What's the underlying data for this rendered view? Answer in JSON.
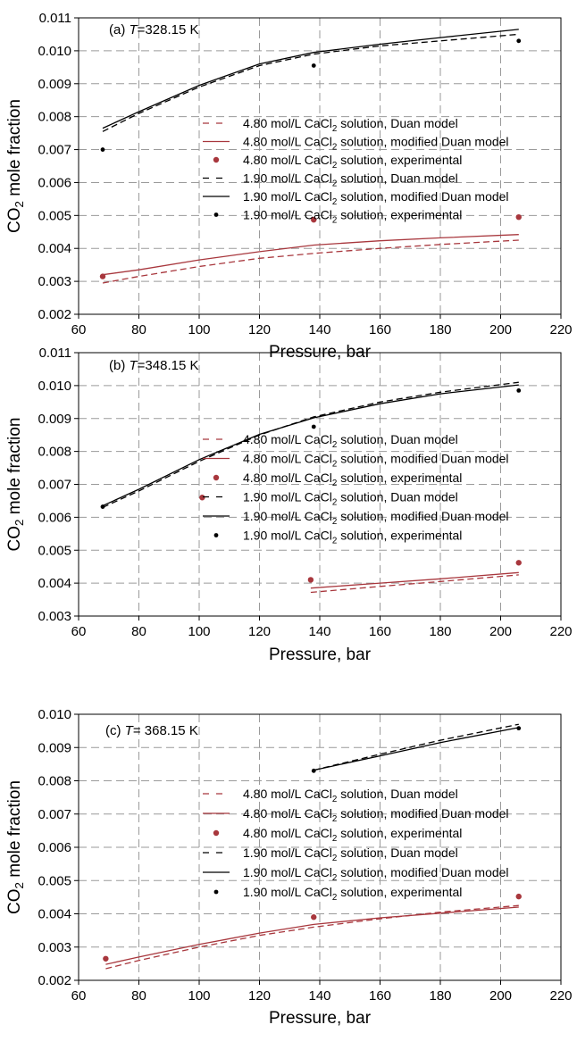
{
  "colors": {
    "cacl2_480": "#a8373d",
    "cacl2_190": "#000000",
    "grid": "#9a9a9a"
  },
  "chart_data": [
    {
      "type": "line",
      "panel_label": "(a)",
      "temperature_symbol": "T",
      "temperature_value": "=328.15 K",
      "xlabel": "Pressure, bar",
      "ylabel": "CO₂ mole fraction",
      "xlim": [
        60,
        220
      ],
      "ylim": [
        0.002,
        0.011
      ],
      "xticks": [
        60,
        80,
        100,
        120,
        140,
        160,
        180,
        200,
        220
      ],
      "yticks": [
        0.002,
        0.003,
        0.004,
        0.005,
        0.006,
        0.007,
        0.008,
        0.009,
        0.01,
        0.011
      ],
      "ytick_decimals": 3,
      "grid": true,
      "legend_position": "middle-right",
      "series": [
        {
          "name": "4.80 mol/L CaCl₂ solution, Duan model",
          "kind": "line",
          "dash": "dashed",
          "color": "#a8373d",
          "x": [
            68,
            80,
            100,
            120,
            138,
            160,
            180,
            206
          ],
          "y": [
            0.00295,
            0.00315,
            0.00345,
            0.0037,
            0.00385,
            0.004,
            0.00412,
            0.00425
          ]
        },
        {
          "name": "4.80 mol/L CaCl₂ solution, modified Duan model",
          "kind": "line",
          "dash": "solid",
          "color": "#a8373d",
          "x": [
            68,
            80,
            100,
            120,
            138,
            160,
            180,
            206
          ],
          "y": [
            0.0032,
            0.00335,
            0.00365,
            0.0039,
            0.0041,
            0.00423,
            0.00432,
            0.00442
          ]
        },
        {
          "name": "4.80 mol/L CaCl₂ solution, experimental",
          "kind": "scatter",
          "color": "#a8373d",
          "x": [
            68,
            138,
            206
          ],
          "y": [
            0.00315,
            0.00487,
            0.00495
          ]
        },
        {
          "name": "1.90 mol/L CaCl₂ solution, Duan model",
          "kind": "line",
          "dash": "dashed",
          "color": "#000000",
          "x": [
            68,
            80,
            100,
            120,
            138,
            160,
            180,
            206
          ],
          "y": [
            0.00755,
            0.0081,
            0.0089,
            0.00955,
            0.0099,
            0.01015,
            0.0103,
            0.0105
          ]
        },
        {
          "name": "1.90 mol/L CaCl₂ solution, modified Duan model",
          "kind": "line",
          "dash": "solid",
          "color": "#000000",
          "x": [
            68,
            80,
            100,
            120,
            138,
            160,
            180,
            206
          ],
          "y": [
            0.00765,
            0.00815,
            0.00895,
            0.0096,
            0.00995,
            0.0102,
            0.0104,
            0.01065
          ]
        },
        {
          "name": "1.90 mol/L CaCl₂ solution, experimental",
          "kind": "scatter",
          "color": "#000000",
          "x": [
            68,
            138,
            206
          ],
          "y": [
            0.007,
            0.00955,
            0.0103
          ]
        }
      ]
    },
    {
      "type": "line",
      "panel_label": "(b)",
      "temperature_symbol": "T",
      "temperature_value": "=348.15 K",
      "xlabel": "Pressure, bar",
      "ylabel": "CO₂ mole fraction",
      "xlim": [
        60,
        220
      ],
      "ylim": [
        0.003,
        0.011
      ],
      "xticks": [
        60,
        80,
        100,
        120,
        140,
        160,
        180,
        200,
        220
      ],
      "yticks": [
        0.003,
        0.004,
        0.005,
        0.006,
        0.007,
        0.008,
        0.009,
        0.01,
        0.011
      ],
      "ytick_decimals": 3,
      "grid": true,
      "legend_position": "middle-right",
      "series": [
        {
          "name": "4.80 mol/L CaCl₂ solution, Duan model",
          "kind": "line",
          "dash": "dashed",
          "color": "#a8373d",
          "x": [
            137,
            160,
            180,
            206
          ],
          "y": [
            0.00372,
            0.0039,
            0.00405,
            0.00425
          ]
        },
        {
          "name": "4.80 mol/L CaCl₂ solution, modified Duan model",
          "kind": "line",
          "dash": "solid",
          "color": "#a8373d",
          "x": [
            137,
            160,
            180,
            206
          ],
          "y": [
            0.00385,
            0.004,
            0.00413,
            0.00432
          ]
        },
        {
          "name": "4.80 mol/L CaCl₂ solution, experimental",
          "kind": "scatter",
          "color": "#a8373d",
          "x": [
            101,
            137,
            206
          ],
          "y": [
            0.0066,
            0.0041,
            0.00462
          ]
        },
        {
          "name": "1.90 mol/L CaCl₂ solution, Duan model",
          "kind": "line",
          "dash": "dashed",
          "color": "#000000",
          "x": [
            68,
            80,
            100,
            120,
            138,
            160,
            180,
            206
          ],
          "y": [
            0.0063,
            0.0068,
            0.0077,
            0.0085,
            0.00905,
            0.0095,
            0.0098,
            0.0101
          ]
        },
        {
          "name": "1.90 mol/L CaCl₂ solution, modified Duan model",
          "kind": "line",
          "dash": "solid",
          "color": "#000000",
          "x": [
            68,
            80,
            100,
            120,
            138,
            160,
            180,
            206
          ],
          "y": [
            0.00635,
            0.00685,
            0.00775,
            0.00852,
            0.00902,
            0.00945,
            0.00975,
            0.01002
          ]
        },
        {
          "name": "1.90 mol/L CaCl₂ solution, experimental",
          "kind": "scatter",
          "color": "#000000",
          "x": [
            68,
            138,
            206
          ],
          "y": [
            0.00632,
            0.00875,
            0.00985
          ]
        }
      ]
    },
    {
      "type": "line",
      "panel_label": "(c)",
      "temperature_symbol": "T",
      "temperature_value": "= 368.15 K",
      "xlabel": "Pressure, bar",
      "ylabel": "CO₂ mole fraction",
      "xlim": [
        60,
        220
      ],
      "ylim": [
        0.002,
        0.01
      ],
      "xticks": [
        60,
        80,
        100,
        120,
        140,
        160,
        180,
        200,
        220
      ],
      "yticks": [
        0.002,
        0.003,
        0.004,
        0.005,
        0.006,
        0.007,
        0.008,
        0.009,
        0.01
      ],
      "ytick_decimals": 3,
      "grid": true,
      "legend_position": "middle-right",
      "series": [
        {
          "name": "4.80 mol/L CaCl₂ solution, Duan model",
          "kind": "line",
          "dash": "dashed",
          "color": "#a8373d",
          "x": [
            69,
            80,
            100,
            120,
            138,
            160,
            180,
            206
          ],
          "y": [
            0.00235,
            0.0026,
            0.003,
            0.00335,
            0.0036,
            0.00385,
            0.00405,
            0.00425
          ]
        },
        {
          "name": "4.80 mol/L CaCl₂ solution, modified Duan model",
          "kind": "line",
          "dash": "solid",
          "color": "#a8373d",
          "x": [
            69,
            80,
            100,
            120,
            138,
            160,
            180,
            206
          ],
          "y": [
            0.00248,
            0.0027,
            0.00308,
            0.00342,
            0.00368,
            0.00388,
            0.00402,
            0.0042
          ]
        },
        {
          "name": "4.80 mol/L CaCl₂ solution, experimental",
          "kind": "scatter",
          "color": "#a8373d",
          "x": [
            69,
            138,
            206
          ],
          "y": [
            0.00265,
            0.0039,
            0.00452
          ]
        },
        {
          "name": "1.90 mol/L CaCl₂ solution, Duan model",
          "kind": "line",
          "dash": "dashed",
          "color": "#000000",
          "x": [
            138,
            160,
            180,
            206
          ],
          "y": [
            0.00832,
            0.0088,
            0.00922,
            0.0097
          ]
        },
        {
          "name": "1.90 mol/L CaCl₂ solution, modified Duan model",
          "kind": "line",
          "dash": "solid",
          "color": "#000000",
          "x": [
            138,
            160,
            180,
            206
          ],
          "y": [
            0.00832,
            0.00875,
            0.00915,
            0.0096
          ]
        },
        {
          "name": "1.90 mol/L CaCl₂ solution, experimental",
          "kind": "scatter",
          "color": "#000000",
          "x": [
            138,
            206
          ],
          "y": [
            0.0083,
            0.00958
          ]
        }
      ]
    }
  ]
}
